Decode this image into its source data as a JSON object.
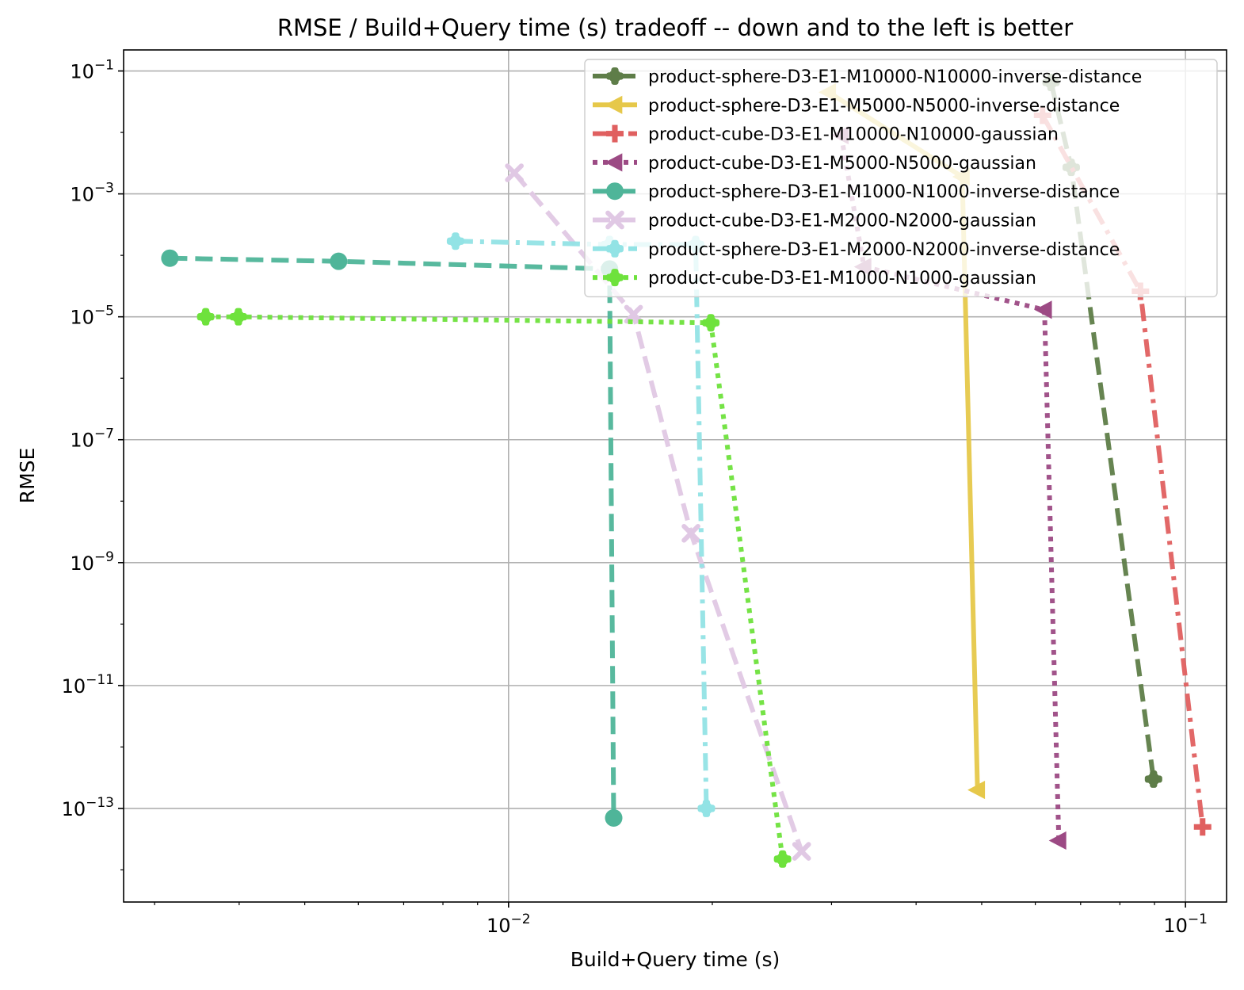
{
  "chart_data": {
    "type": "line",
    "title": "RMSE / Build+Query time (s) tradeoff -- down and to the left is better",
    "xlabel": "Build+Query time (s)",
    "ylabel": "RMSE",
    "xscale": "log",
    "yscale": "log",
    "xlim": [
      0.0027,
      0.115
    ],
    "ylim": [
      3e-15,
      0.22
    ],
    "grid": true,
    "legend_position": "top-right",
    "x_major_ticks": [
      {
        "value": 0.01,
        "base": "10",
        "exp": "−2"
      },
      {
        "value": 0.1,
        "base": "10",
        "exp": "−1"
      }
    ],
    "y_major_ticks": [
      {
        "value": 0.1,
        "base": "10",
        "exp": "−1"
      },
      {
        "value": 0.001,
        "base": "10",
        "exp": "−3"
      },
      {
        "value": 1e-05,
        "base": "10",
        "exp": "−5"
      },
      {
        "value": 1e-07,
        "base": "10",
        "exp": "−7"
      },
      {
        "value": 1e-09,
        "base": "10",
        "exp": "−9"
      },
      {
        "value": 1e-11,
        "base": "10",
        "exp": "−11"
      },
      {
        "value": 1e-13,
        "base": "10",
        "exp": "−13"
      }
    ],
    "series": [
      {
        "name": "product-sphere-D3-E1-M10000-N10000-inverse-distance",
        "color": "#5e7d48",
        "dash": "dashed",
        "marker": "cross-circle",
        "x": [
          0.0633,
          0.0678,
          0.0897
        ],
        "y": [
          0.065,
          0.0027,
          3e-13
        ]
      },
      {
        "name": "product-sphere-D3-E1-M5000-N5000-inverse-distance",
        "color": "#e6c84a",
        "dash": "solid",
        "marker": "triangle-left",
        "x": [
          0.0297,
          0.0468,
          0.0493
        ],
        "y": [
          0.045,
          0.0019,
          2e-13
        ]
      },
      {
        "name": "product-cube-D3-E1-M10000-N10000-gaussian",
        "color": "#e06060",
        "dash": "dashdot",
        "marker": "plus",
        "x": [
          0.0615,
          0.0858,
          0.106
        ],
        "y": [
          0.019,
          2.6e-05,
          5e-14
        ]
      },
      {
        "name": "product-cube-D3-E1-M5000-N5000-gaussian",
        "color": "#9c4a84",
        "dash": "dotted",
        "marker": "triangle-left",
        "x": [
          0.031,
          0.0335,
          0.0619,
          0.065
        ],
        "y": [
          0.009,
          6.5e-05,
          1.3e-05,
          3e-14
        ]
      },
      {
        "name": "product-sphere-D3-E1-M1000-N1000-inverse-distance",
        "color": "#4fb599",
        "dash": "dashed",
        "marker": "circle",
        "x": [
          0.00316,
          0.00561,
          0.0141,
          0.0143
        ],
        "y": [
          9e-05,
          8e-05,
          6e-05,
          7e-14
        ]
      },
      {
        "name": "product-cube-D3-E1-M2000-N2000-gaussian",
        "color": "#e0c8e4",
        "dash": "dashed",
        "marker": "x",
        "x": [
          0.0102,
          0.0153,
          0.0186,
          0.0271
        ],
        "y": [
          0.0022,
          1.1e-05,
          3e-09,
          2e-14
        ]
      },
      {
        "name": "product-sphere-D3-E1-M2000-N2000-inverse-distance",
        "color": "#92e3e5",
        "dash": "dashdot",
        "marker": "cross-circle",
        "x": [
          0.00835,
          0.0141,
          0.0189,
          0.0196
        ],
        "y": [
          0.00017,
          0.00015,
          0.00015,
          1e-13
        ]
      },
      {
        "name": "product-cube-D3-E1-M1000-N1000-gaussian",
        "color": "#6ee23c",
        "dash": "dotted",
        "marker": "cross-circle",
        "x": [
          0.00357,
          0.00399,
          0.0199,
          0.0254
        ],
        "y": [
          1e-05,
          1e-05,
          8e-06,
          1.5e-14
        ]
      }
    ]
  }
}
